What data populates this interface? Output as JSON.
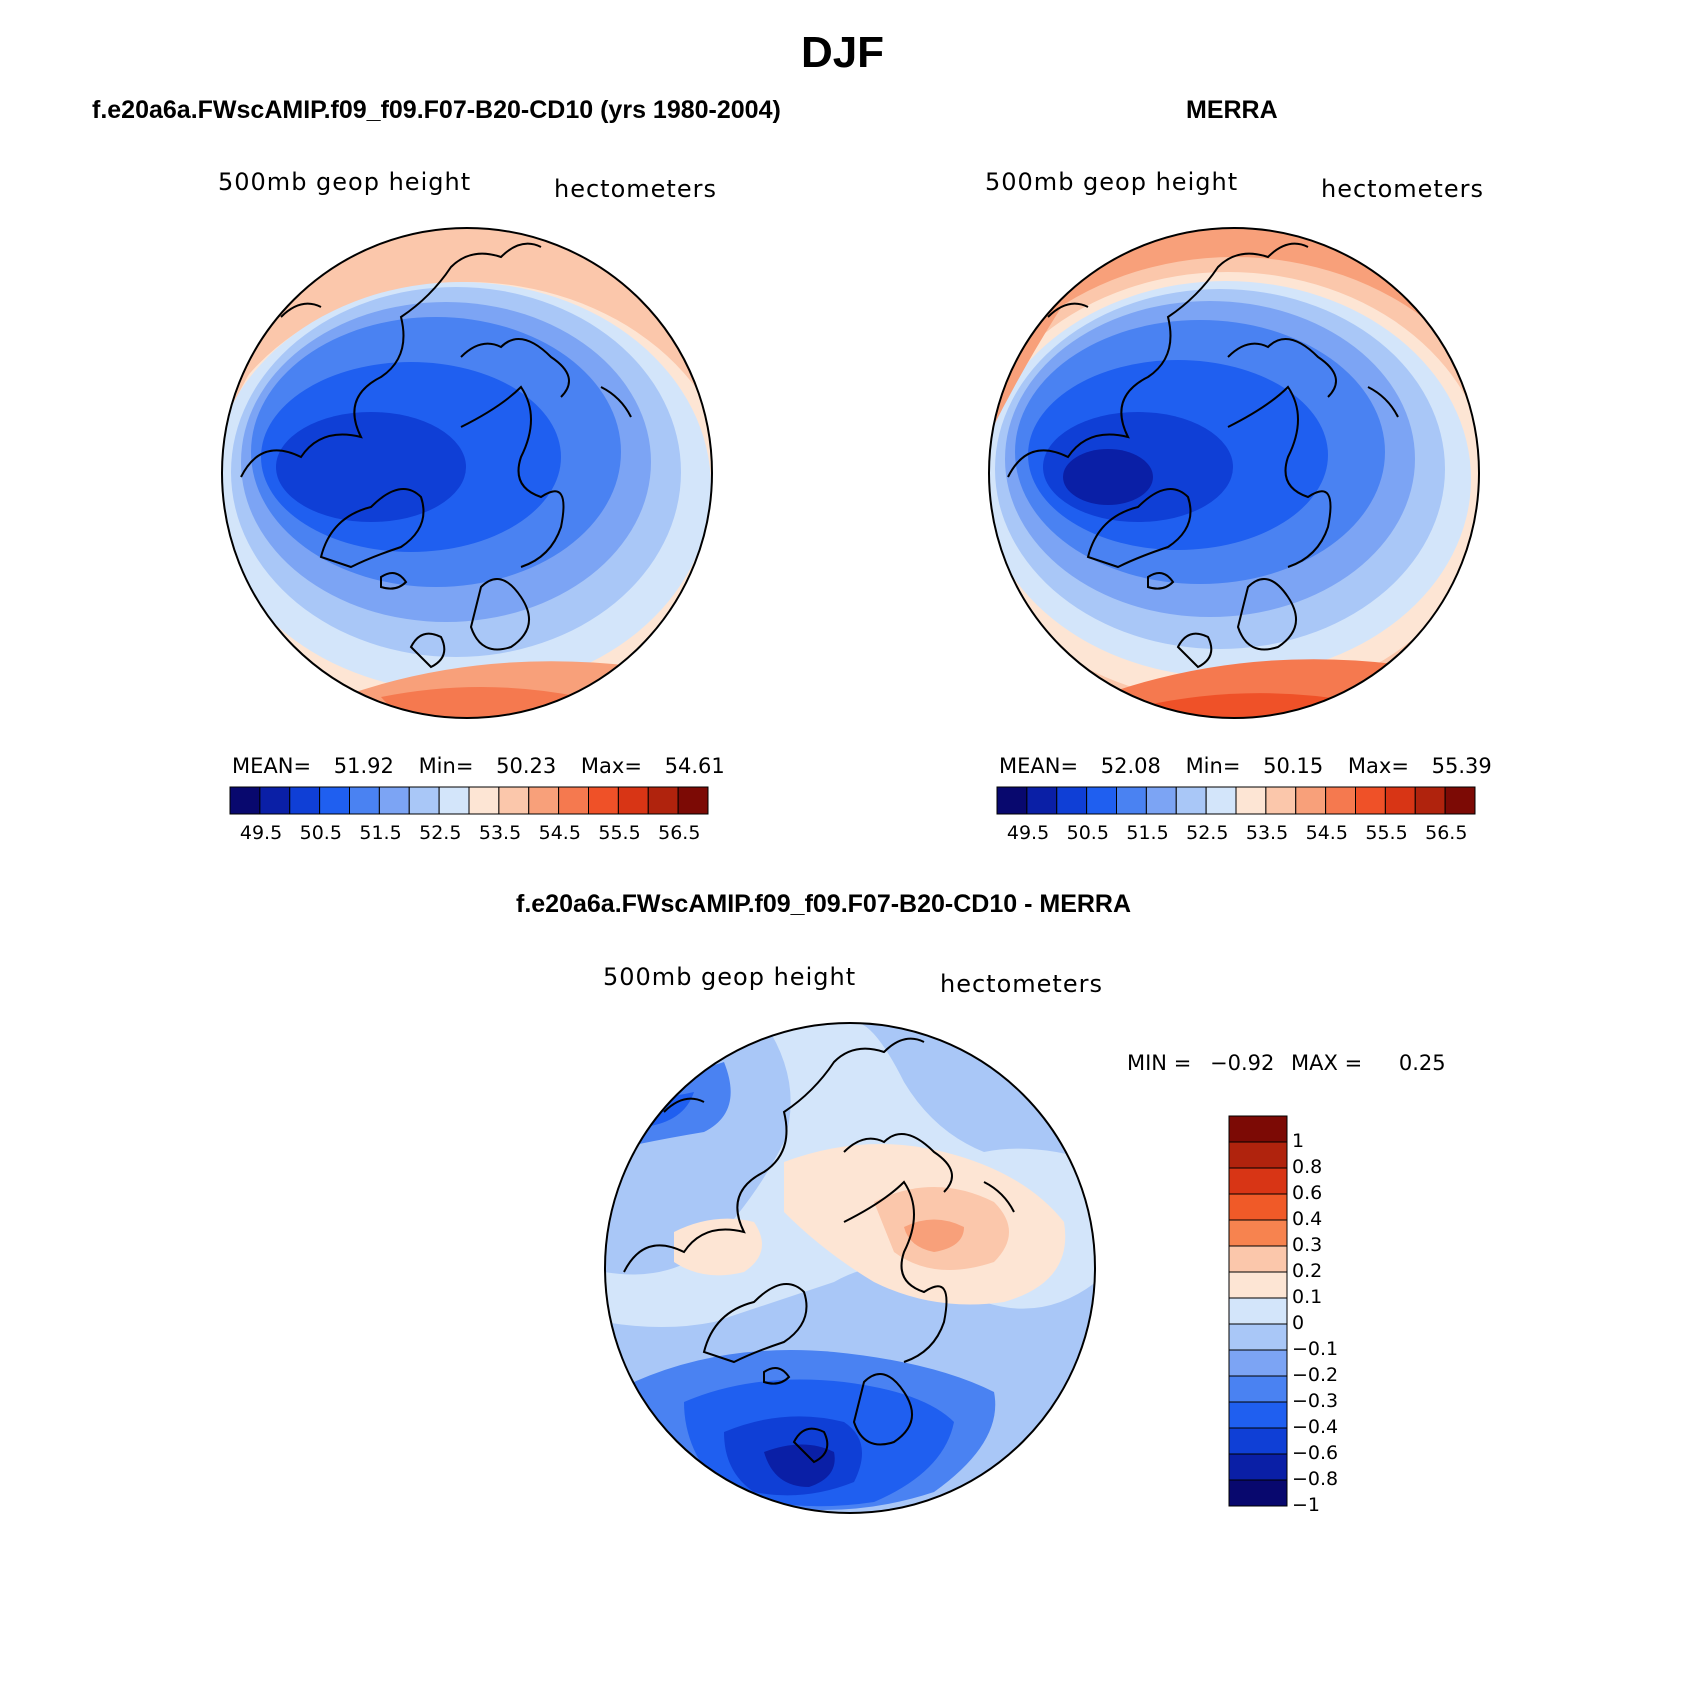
{
  "title": "DJF",
  "panels": [
    {
      "id": "model",
      "title": "f.e20a6a.FWscAMIP.f09_f09.F07-B20-CD10 (yrs 1980-2004)",
      "left_label": "500mb geop height",
      "right_label": "hectometers",
      "stats": {
        "mean_label": "MEAN=",
        "mean": "51.92",
        "min_label": "Min=",
        "min": "50.23",
        "max_label": "Max=",
        "max": "54.61"
      },
      "colorbar_ticks": [
        "49.5",
        "50.5",
        "51.5",
        "52.5",
        "53.5",
        "54.5",
        "55.5",
        "56.5"
      ]
    },
    {
      "id": "obs",
      "title": "MERRA",
      "left_label": "500mb geop height",
      "right_label": "hectometers",
      "stats": {
        "mean_label": "MEAN=",
        "mean": "52.08",
        "min_label": "Min=",
        "min": "50.15",
        "max_label": "Max=",
        "max": "55.39"
      },
      "colorbar_ticks": [
        "49.5",
        "50.5",
        "51.5",
        "52.5",
        "53.5",
        "54.5",
        "55.5",
        "56.5"
      ]
    },
    {
      "id": "diff",
      "title": "f.e20a6a.FWscAMIP.f09_f09.F07-B20-CD10 - MERRA",
      "left_label": "500mb geop height",
      "right_label": "hectometers",
      "stats": {
        "min_label": "MIN =",
        "min": "−0.92",
        "max_label": "MAX =",
        "max": "0.25"
      },
      "colorbar_ticks": [
        "1",
        "0.8",
        "0.6",
        "0.4",
        "0.3",
        "0.2",
        "0.1",
        "0",
        "−0.1",
        "−0.2",
        "−0.3",
        "−0.4",
        "−0.6",
        "−0.8",
        "−1"
      ]
    }
  ],
  "colors": {
    "abs_scale": [
      "#08086e",
      "#0a1fa6",
      "#0f3fd6",
      "#1f5ff0",
      "#4a82f2",
      "#7ca4f4",
      "#a9c7f7",
      "#d3e5fa",
      "#fde5d4",
      "#fbc7ab",
      "#f8a07a",
      "#f5794f",
      "#ef5128",
      "#d83515",
      "#b0230d",
      "#7c0a05"
    ],
    "diff_scale": [
      "#7c0a05",
      "#b0230d",
      "#d83515",
      "#f05a28",
      "#f7834f",
      "#fbc7ab",
      "#fde5d4",
      "#d3e5fa",
      "#a9c7f7",
      "#7ca4f4",
      "#4a82f2",
      "#1f5ff0",
      "#0f3fd6",
      "#0a1fa6",
      "#08086e"
    ]
  }
}
